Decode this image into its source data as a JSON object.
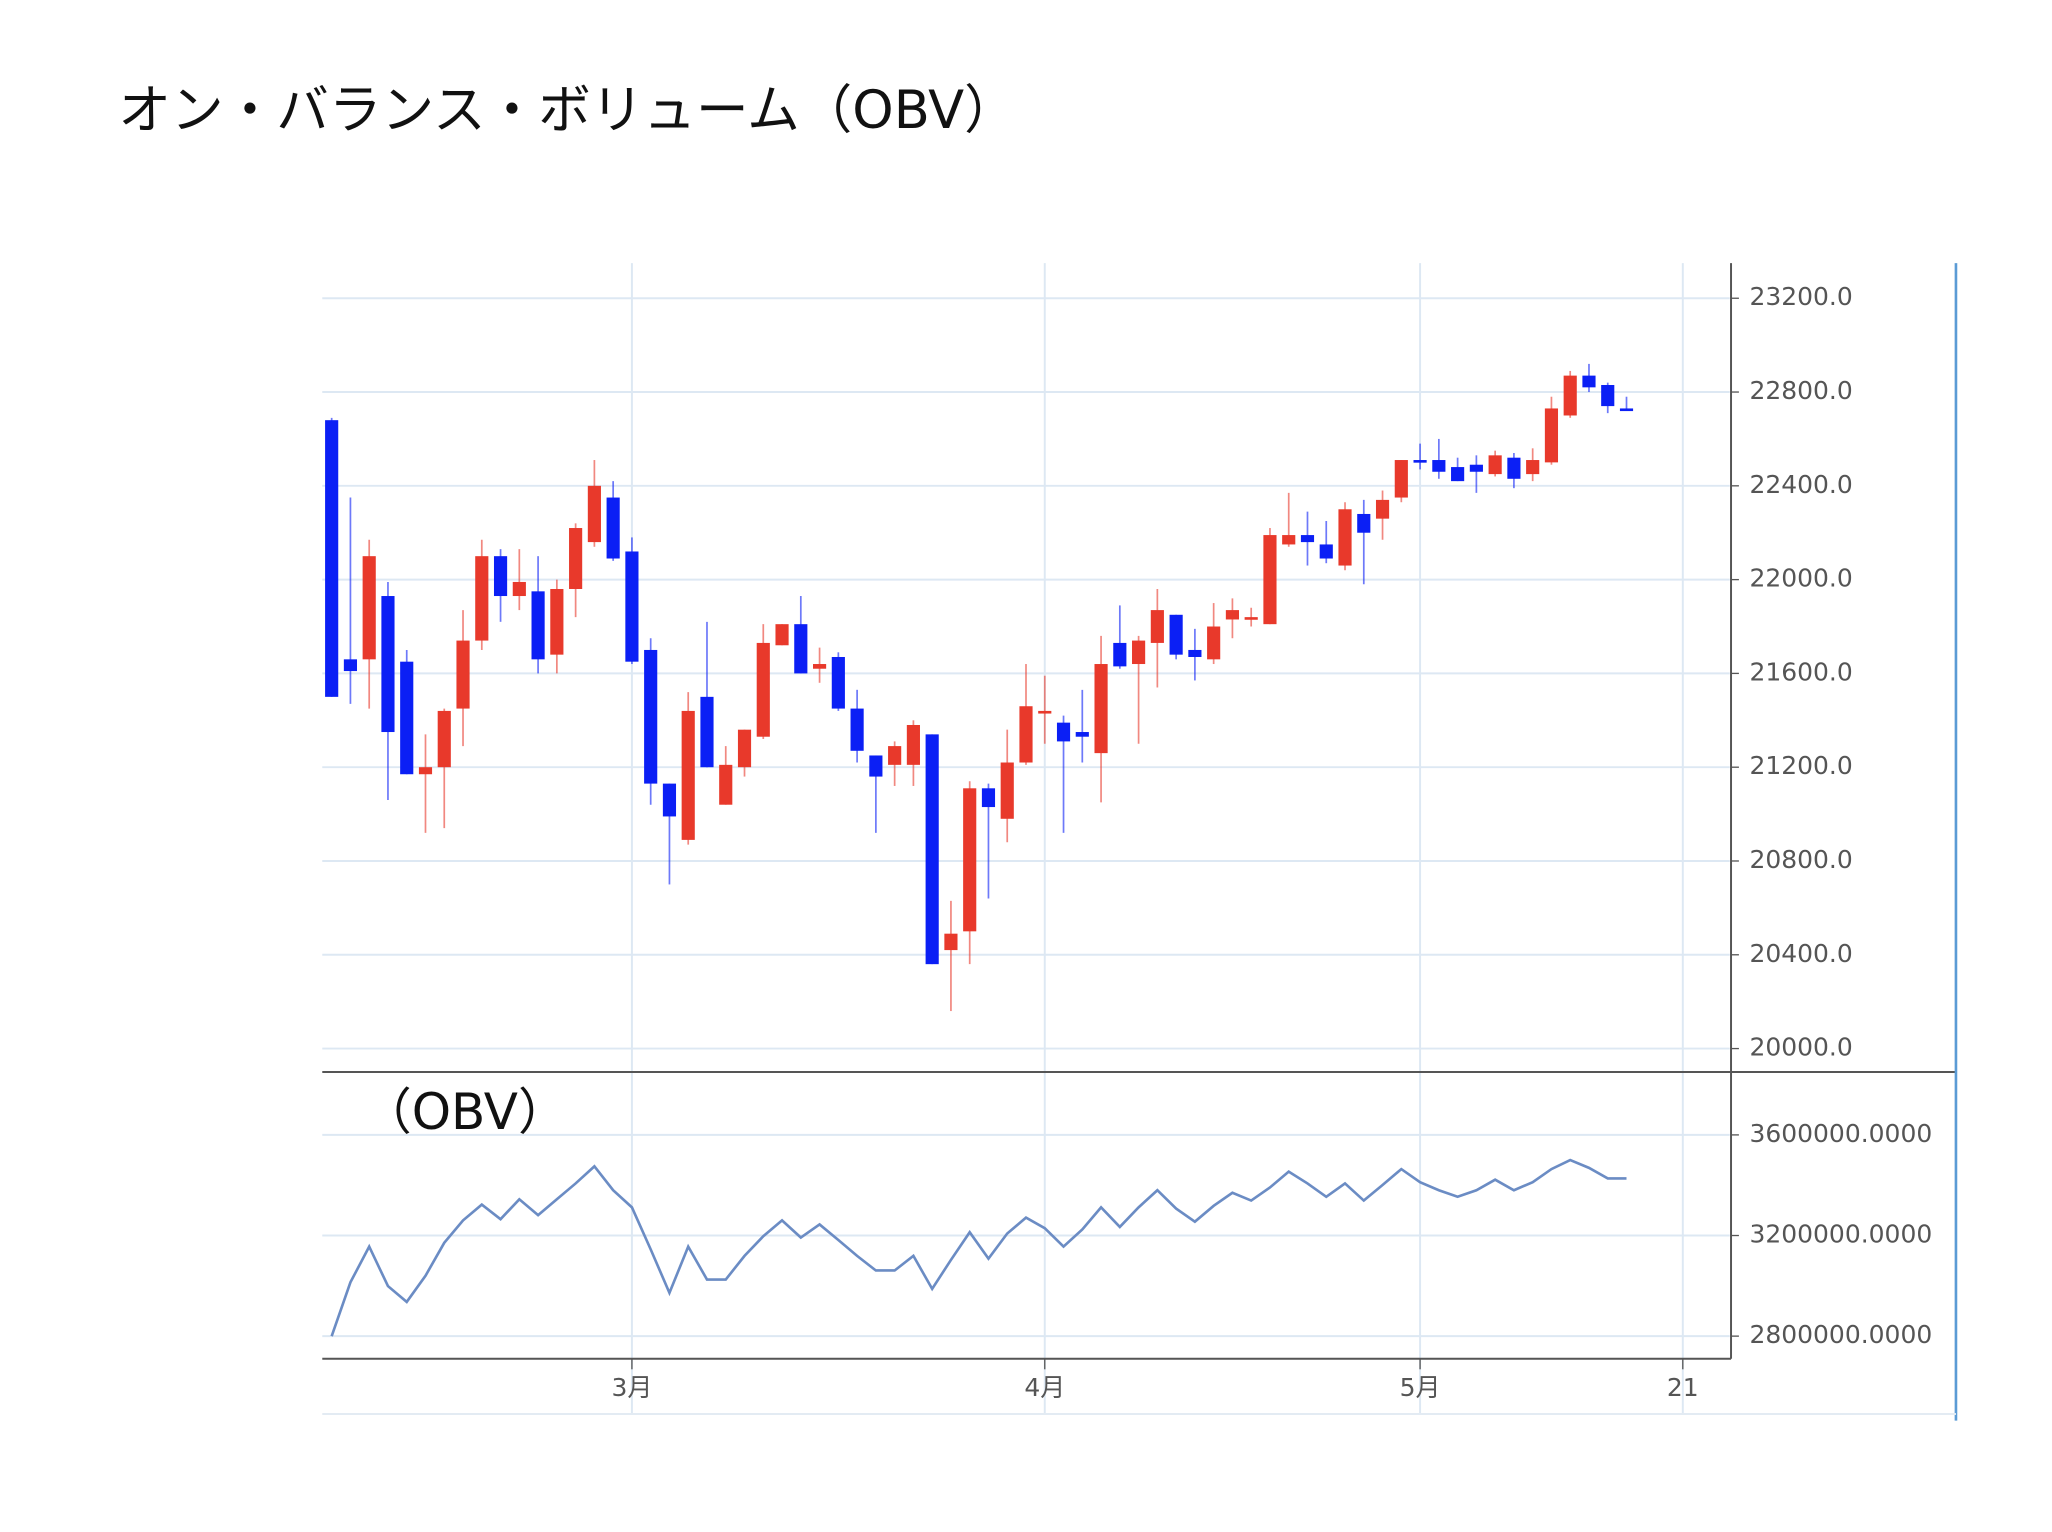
{
  "title": "オン・バランス・ボリューム（OBV）",
  "chart_data": [
    {
      "type": "candlestick",
      "categories": [
        null,
        null,
        null,
        null,
        null,
        null,
        null,
        null,
        null,
        null,
        null,
        null,
        null,
        null,
        null,
        null,
        "3月",
        null,
        null,
        null,
        null,
        null,
        null,
        null,
        null,
        null,
        null,
        null,
        null,
        null,
        null,
        null,
        null,
        null,
        null,
        null,
        null,
        null,
        "4月",
        null,
        null,
        null,
        null,
        null,
        null,
        null,
        null,
        null,
        null,
        null,
        null,
        null,
        null,
        null,
        null,
        null,
        null,
        null,
        "5月",
        null,
        null,
        null,
        null,
        null,
        null,
        null,
        null,
        null,
        null,
        null,
        null,
        null,
        "21",
        null,
        null
      ],
      "open": [
        22680,
        21660,
        21660,
        21930,
        21650,
        21170,
        21200,
        21450,
        21740,
        22100,
        21930,
        21950,
        21680,
        21960,
        22160,
        22350,
        22120,
        21700,
        21130,
        20890,
        21500,
        21040,
        21200,
        21330,
        21720,
        21810,
        21620,
        21670,
        21450,
        21250,
        21210,
        21210,
        21340,
        20420,
        20500,
        21110,
        20980,
        21220,
        21430,
        21390,
        21350,
        21260,
        21730,
        21640,
        21730,
        21850,
        21700,
        21660,
        21830,
        21840,
        21810,
        22150,
        22190,
        22150,
        22060,
        22280,
        22260,
        22350,
        22510,
        22510,
        22480,
        22490,
        22450,
        22520,
        22450,
        22500,
        22700,
        22870,
        22830,
        22730,
        null,
        null,
        null,
        null,
        null
      ],
      "high": [
        22690,
        22350,
        22170,
        21990,
        21700,
        21340,
        21450,
        21870,
        22170,
        22130,
        22130,
        22100,
        22000,
        22240,
        22510,
        22420,
        22180,
        21750,
        21130,
        21520,
        21820,
        21290,
        21360,
        21810,
        21810,
        21930,
        21710,
        21690,
        21530,
        21250,
        21310,
        21400,
        21340,
        20630,
        21140,
        21130,
        21360,
        21640,
        21590,
        21420,
        21530,
        21760,
        21890,
        21760,
        21960,
        21850,
        21790,
        21900,
        21920,
        21880,
        22220,
        22370,
        22290,
        22250,
        22330,
        22340,
        22380,
        22510,
        22580,
        22600,
        22520,
        22530,
        22550,
        22540,
        22560,
        22780,
        22890,
        22920,
        22840,
        22780,
        null,
        null,
        null,
        null,
        null
      ],
      "low": [
        21500,
        21470,
        21450,
        21060,
        21170,
        20920,
        20940,
        21290,
        21700,
        21820,
        21870,
        21600,
        21600,
        21840,
        22140,
        22080,
        21640,
        21040,
        20700,
        20870,
        21200,
        21040,
        21160,
        21320,
        21720,
        21600,
        21560,
        21440,
        21220,
        20920,
        21120,
        21120,
        20360,
        20160,
        20360,
        20640,
        20880,
        21210,
        21300,
        20920,
        21220,
        21050,
        21620,
        21300,
        21540,
        21660,
        21570,
        21640,
        21750,
        21800,
        21810,
        22140,
        22060,
        22070,
        22040,
        21980,
        22170,
        22330,
        22470,
        22430,
        22420,
        22370,
        22440,
        22390,
        22420,
        22490,
        22690,
        22800,
        22710,
        22720,
        null,
        null,
        null,
        null,
        null
      ],
      "close": [
        21500,
        21610,
        22100,
        21350,
        21170,
        21200,
        21440,
        21740,
        22100,
        21930,
        21990,
        21660,
        21960,
        22220,
        22400,
        22090,
        21650,
        21130,
        20990,
        21440,
        21200,
        21210,
        21360,
        21730,
        21810,
        21600,
        21640,
        21450,
        21270,
        21160,
        21290,
        21380,
        20360,
        20490,
        21110,
        21030,
        21220,
        21460,
        21440,
        21310,
        21330,
        21640,
        21630,
        21740,
        21870,
        21680,
        21670,
        21800,
        21870,
        21840,
        22190,
        22190,
        22160,
        22090,
        22300,
        22200,
        22340,
        22510,
        22500,
        22460,
        22420,
        22460,
        22530,
        22430,
        22510,
        22730,
        22870,
        22820,
        22740,
        22720,
        null,
        null,
        null,
        null,
        null
      ],
      "up_color": "#e8392b",
      "down_color": "#0b1ff5",
      "ylim": [
        19900,
        23350
      ],
      "yticks": [
        {
          "value": 20000,
          "label": "20000.0"
        },
        {
          "value": 20400,
          "label": "20400.0"
        },
        {
          "value": 20800,
          "label": "20800.0"
        },
        {
          "value": 21200,
          "label": "21200.0"
        },
        {
          "value": 21600,
          "label": "21600.0"
        },
        {
          "value": 22000,
          "label": "22000.0"
        },
        {
          "value": 22400,
          "label": "22400.0"
        },
        {
          "value": 22800,
          "label": "22800.0"
        },
        {
          "value": 23200,
          "label": "23200.0"
        }
      ],
      "grid": true
    },
    {
      "type": "line",
      "title": "（OBV）",
      "series": [
        {
          "color": "#6b8cc4",
          "values": [
            2800000,
            3014000,
            3156000,
            2999000,
            2936000,
            3040000,
            3171000,
            3260000,
            3323000,
            3265000,
            3344000,
            3281000,
            3344000,
            3407000,
            3475000,
            3380000,
            3312000,
            3145000,
            2972000,
            3156000,
            3025000,
            3025000,
            3119000,
            3197000,
            3260000,
            3192000,
            3244000,
            3182000,
            3119000,
            3061000,
            3061000,
            3119000,
            2988000,
            3103000,
            3213000,
            3108000,
            3208000,
            3271000,
            3229000,
            3156000,
            3224000,
            3312000,
            3234000,
            3312000,
            3380000,
            3307000,
            3255000,
            3318000,
            3370000,
            3339000,
            3391000,
            3454000,
            3407000,
            3354000,
            3407000,
            3339000,
            3401000,
            3464000,
            3412000,
            3380000,
            3354000,
            3380000,
            3422000,
            3380000,
            3412000,
            3464000,
            3500000,
            3469000,
            3427000,
            3427000,
            null,
            null,
            null,
            null,
            null
          ]
        }
      ],
      "ylim": [
        2710000,
        3850000
      ],
      "yticks": [
        {
          "value": 2800000,
          "label": "2800000.0000"
        },
        {
          "value": 3200000,
          "label": "3200000.0000"
        },
        {
          "value": 3600000,
          "label": "3600000.0000"
        }
      ],
      "grid": true
    }
  ]
}
